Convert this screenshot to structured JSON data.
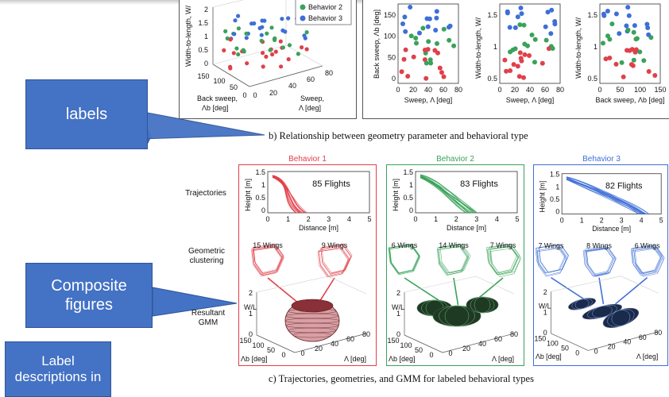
{
  "callouts": {
    "labels": "labels",
    "composite_figures": "Composite figures",
    "label_descriptions": "Label descriptions in"
  },
  "captions": {
    "b": "b) Relationship between geometry parameter and behavioral type",
    "c": "c) Trajectories, geometries, and GMM for labeled behavioral types"
  },
  "top_legend": {
    "behavior2": "Behavior 2",
    "behavior3": "Behavior 3"
  },
  "top_3d": {
    "zlabel": "Width-to-length, W/",
    "back_sweep_label": "Back sweep,",
    "back_sweep_sym": "Λb [deg]",
    "sweep_label": "Sweep,",
    "sweep_sym": "Λ [deg]",
    "z_ticks": [
      "2",
      "1.5",
      "1",
      "0.5",
      "0"
    ],
    "back_ticks": [
      "150",
      "100",
      "50",
      "0"
    ],
    "sweep_ticks": [
      "0",
      "20",
      "40",
      "60",
      "80"
    ]
  },
  "scatter_panels": [
    {
      "ylabel": "Back sweep, Λb [deg]",
      "xlabel": "Sweep, Λ [deg]",
      "yticks": [
        "150",
        "100",
        "50",
        "0"
      ],
      "xticks": [
        "0",
        "20",
        "40",
        "60",
        "80"
      ]
    },
    {
      "ylabel": "Width-to-length, W/",
      "xlabel": "Sweep, Λ [deg]",
      "yticks": [
        "1.5",
        "1",
        "0.5"
      ],
      "xticks": [
        "0",
        "20",
        "40",
        "60",
        "80"
      ]
    },
    {
      "ylabel": "Width-to-length, W/",
      "xlabel": "Back sweep, Λb [deg]",
      "yticks": [
        "1.5",
        "1",
        "0.5"
      ],
      "xticks": [
        "0",
        "50",
        "100",
        "150"
      ]
    }
  ],
  "row_labels": {
    "trajectories": "Trajectories",
    "geometric_clustering": "Geometric clustering",
    "resultant_gmm": "Resultant GMM"
  },
  "behaviors": [
    {
      "name": "Behavior 1",
      "color": "#e0404a",
      "flights": "85 Flights",
      "wings": [
        "15 Wings",
        "9 Wings"
      ]
    },
    {
      "name": "Behavior 2",
      "color": "#3aa25a",
      "flights": "83 Flights",
      "wings": [
        "6 Wings",
        "14 Wings",
        "7 Wings"
      ]
    },
    {
      "name": "Behavior 3",
      "color": "#3e6fd6",
      "flights": "82 Flights",
      "wings": [
        "7 Wings",
        "8 Wings",
        "6 Wings"
      ]
    }
  ],
  "trajectory_axes": {
    "ylabel": "Height [m]",
    "xlabel": "Distance [m]",
    "yticks": [
      "1.5",
      "1",
      "0.5",
      "0"
    ],
    "xticks": [
      "0",
      "1",
      "2",
      "3",
      "4",
      "5"
    ]
  },
  "gmm_axes": {
    "wl_label": "W/L",
    "lambda_b": "Λb [deg]",
    "lambda": "Λ [deg]",
    "z_ticks": [
      "2",
      "1",
      "0"
    ],
    "back_ticks": [
      "150",
      "100",
      "50",
      "0"
    ],
    "sweep_ticks": [
      "0",
      "20",
      "40",
      "60",
      "80"
    ]
  },
  "colors": {
    "callout": "#4472c4",
    "behavior1": "#e0404a",
    "behavior2": "#3aa25a",
    "behavior3": "#3e6fd6"
  }
}
